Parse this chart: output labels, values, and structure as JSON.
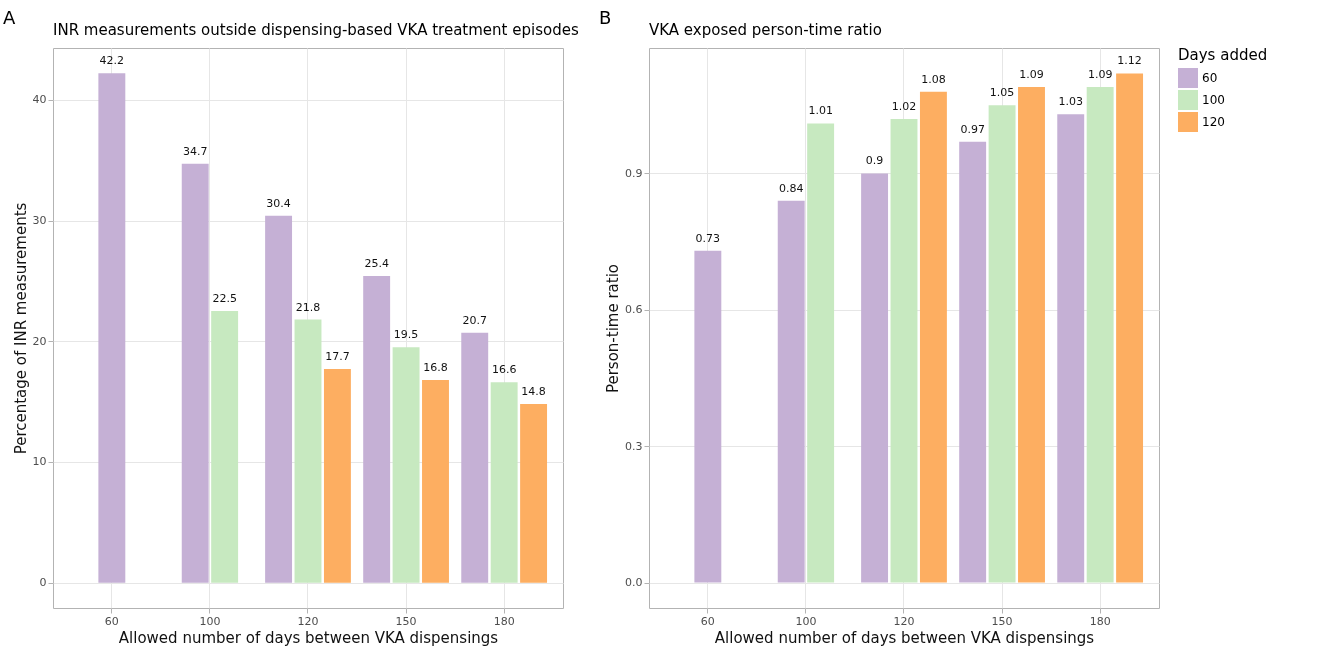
{
  "chart_data": [
    {
      "type": "bar",
      "title": "INR measurements outside dispensing-based VKA treatment episodes",
      "xlabel": "Allowed number of days between VKA dispensings",
      "ylabel": "Percentage of INR measurements",
      "legend_title": "Days added",
      "annotations": [
        "A"
      ],
      "categories": [
        "60",
        "100",
        "120",
        "150",
        "180"
      ],
      "series": [
        {
          "name": "60",
          "color": "#c5b0d5",
          "values": [
            42.2,
            34.7,
            30.4,
            25.4,
            20.7
          ]
        },
        {
          "name": "100",
          "color": "#c7e9c0",
          "values": [
            null,
            22.5,
            21.8,
            19.5,
            16.6
          ]
        },
        {
          "name": "120",
          "color": "#fdae61",
          "values": [
            null,
            null,
            17.7,
            16.8,
            14.8
          ]
        }
      ],
      "ylim": [
        -2.1,
        44.3
      ],
      "yticks": [
        0,
        10,
        20,
        30,
        40
      ],
      "grid": true,
      "data_labels": true,
      "legend": "right"
    },
    {
      "type": "bar",
      "title": "VKA exposed person-time ratio",
      "xlabel": "Allowed number of days between VKA dispensings",
      "ylabel": "Person-time ratio",
      "annotations": [
        "B"
      ],
      "categories": [
        "60",
        "100",
        "120",
        "150",
        "180"
      ],
      "series": [
        {
          "name": "60",
          "color": "#c5b0d5",
          "values": [
            0.73,
            0.84,
            0.9,
            0.97,
            1.03
          ]
        },
        {
          "name": "100",
          "color": "#c7e9c0",
          "values": [
            null,
            1.01,
            1.02,
            1.05,
            1.09
          ]
        },
        {
          "name": "120",
          "color": "#fdae61",
          "values": [
            null,
            null,
            1.08,
            1.09,
            1.12
          ]
        }
      ],
      "ylim": [
        -0.056,
        1.176
      ],
      "yticks": [
        {
          "value": 0,
          "label": "0.0"
        },
        0.3,
        0.6,
        0.9
      ],
      "grid": true,
      "data_labels": true
    }
  ]
}
